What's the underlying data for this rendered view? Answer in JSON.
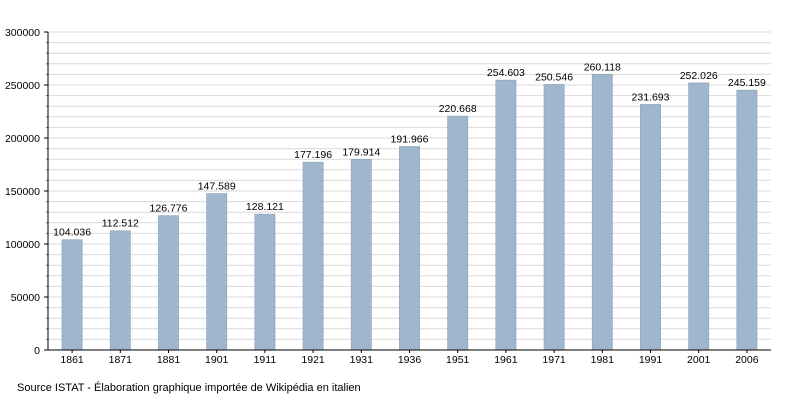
{
  "chart_data": {
    "type": "bar",
    "categories": [
      "1861",
      "1871",
      "1881",
      "1901",
      "1911",
      "1921",
      "1931",
      "1936",
      "1951",
      "1961",
      "1971",
      "1981",
      "1991",
      "2001",
      "2006"
    ],
    "values": [
      104036,
      112512,
      126776,
      147589,
      128121,
      177196,
      179914,
      191966,
      220668,
      254603,
      250546,
      260118,
      231693,
      252026,
      245159
    ],
    "value_labels": [
      "104.036",
      "112.512",
      "126.776",
      "147.589",
      "128.121",
      "177.196",
      "179.914",
      "191.966",
      "220.668",
      "254.603",
      "250.546",
      "260.118",
      "231.693",
      "252.026",
      "245.159"
    ],
    "title": "",
    "xlabel": "",
    "ylabel": "",
    "ylim": [
      0,
      300000
    ],
    "y_ticks": [
      "0",
      "50000",
      "100000",
      "150000",
      "200000",
      "250000",
      "300000"
    ],
    "grid": true,
    "legend": "none",
    "colors": {
      "bar": "#9fb6cd",
      "bar_edge": "#8aa2ba",
      "grid": "#d9d9d9",
      "axis": "#000000"
    }
  },
  "source": "Source ISTAT - Élaboration graphique importée de Wikipédia en italien"
}
